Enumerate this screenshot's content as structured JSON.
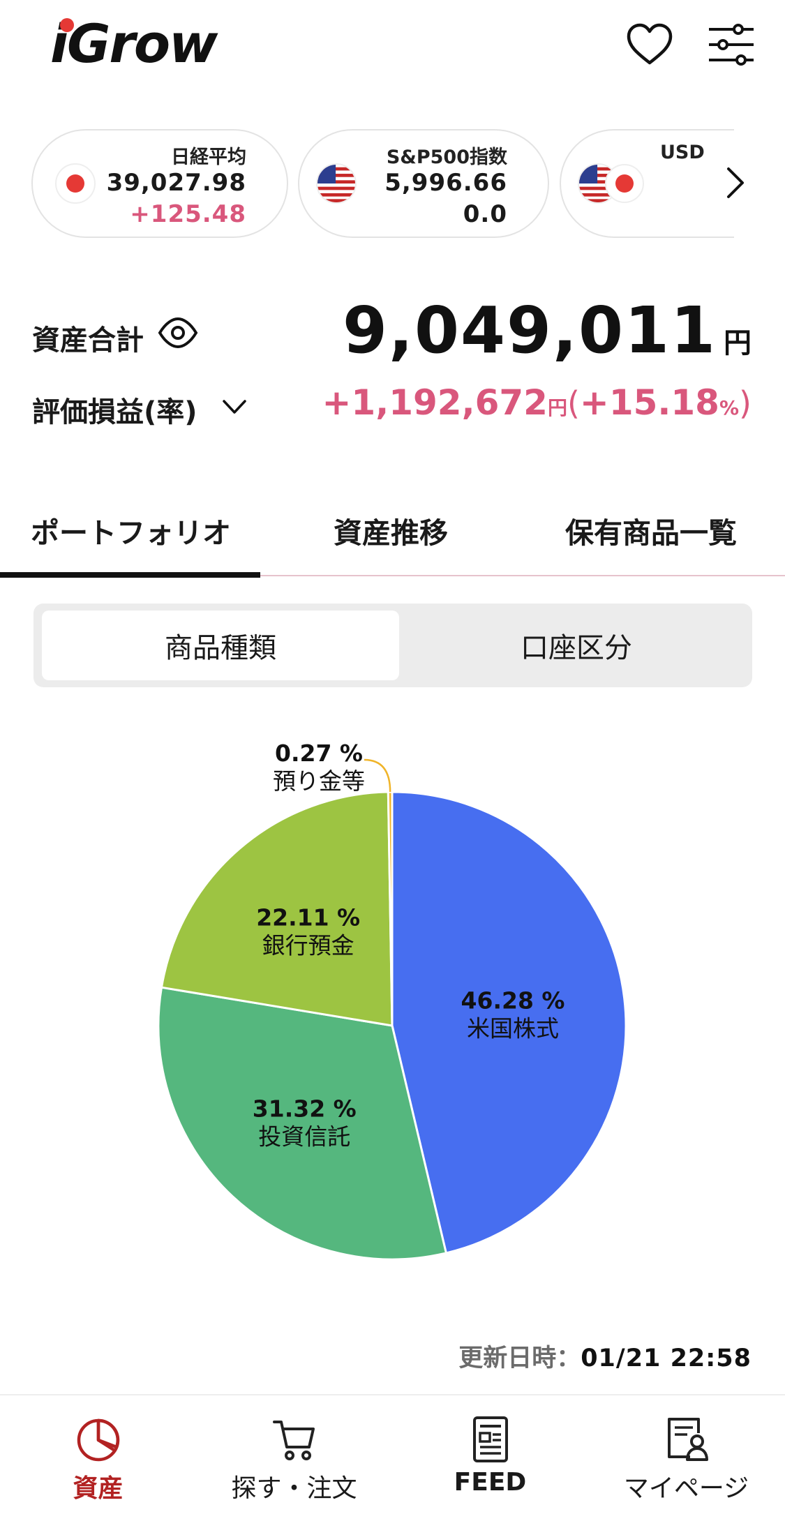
{
  "app": {
    "logo_text": "iGrow"
  },
  "market": [
    {
      "name": "日経平均",
      "value": "39,027.98",
      "change": "+125.48",
      "change_color": "#d9577c",
      "flag": "japan-flag"
    },
    {
      "name": "S&P500指数",
      "value": "5,996.66",
      "change": "0.0",
      "change_color": "#1a1a1a",
      "flag": "us-flag"
    },
    {
      "name": "USD",
      "flag": "us-jp-flag"
    }
  ],
  "assets": {
    "total_label": "資産合計",
    "total_value": "9,049,011",
    "total_unit": "円",
    "pl_label": "評価損益(率)",
    "pl_value": "+1,192,672",
    "pl_unit": "円",
    "pl_paren_open": "(",
    "pl_rate": "+15.18",
    "pl_rate_unit": "%",
    "pl_paren_close": ")",
    "pl_color": "#d9577c"
  },
  "tabs": [
    {
      "label": "ポートフォリオ",
      "active": true
    },
    {
      "label": "資産推移",
      "active": false
    },
    {
      "label": "保有商品一覧",
      "active": false
    }
  ],
  "segment": [
    {
      "label": "商品種類",
      "active": true
    },
    {
      "label": "口座区分",
      "active": false
    }
  ],
  "chart_data": {
    "type": "pie",
    "slices": [
      {
        "label": "米国株式",
        "value": 46.28,
        "display": "46.28 %",
        "color": "#476ef0"
      },
      {
        "label": "投資信託",
        "value": 31.32,
        "display": "31.32 %",
        "color": "#55b77e"
      },
      {
        "label": "銀行預金",
        "value": 22.11,
        "display": "22.11 %",
        "color": "#9dc442"
      },
      {
        "label": "預り金等",
        "value": 0.27,
        "display": "0.27 %",
        "color": "#f0b429"
      }
    ]
  },
  "updated": {
    "label": "更新日時：",
    "value": "01/21 22:58"
  },
  "nav": [
    {
      "label": "資産",
      "icon": "pie-chart-icon",
      "active": true
    },
    {
      "label": "探す・注文",
      "icon": "cart-icon",
      "active": false
    },
    {
      "label": "FEED",
      "icon": "news-icon",
      "active": false
    },
    {
      "label": "マイページ",
      "icon": "profile-doc-icon",
      "active": false
    }
  ],
  "colors": {
    "accent_red": "#b22222",
    "pink": "#d9577c"
  }
}
